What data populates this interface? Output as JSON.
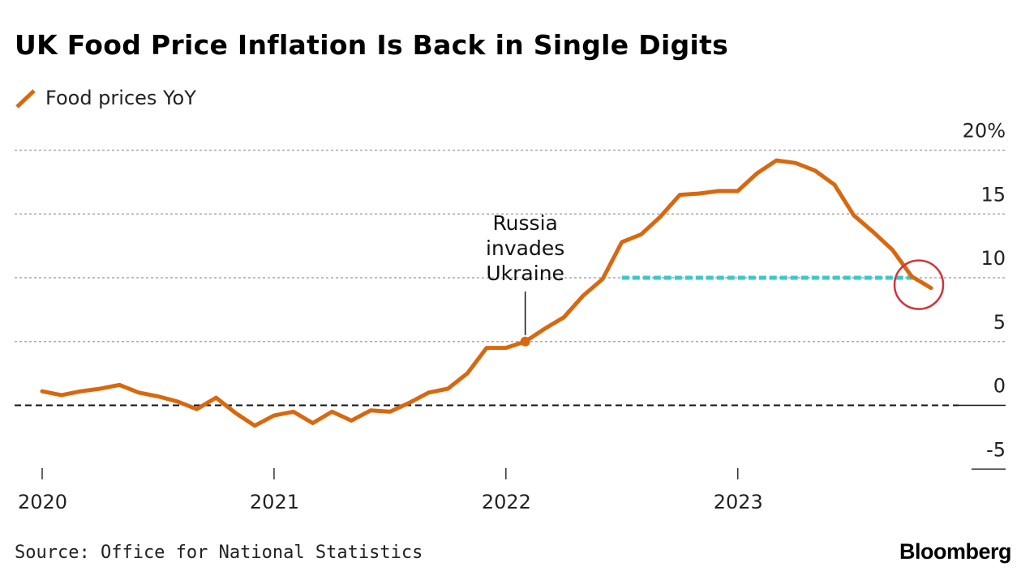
{
  "header": {
    "title": "UK Food Price Inflation Is Back in Single Digits"
  },
  "legend": {
    "label": "Food prices YoY",
    "color": "#d8680f"
  },
  "footer": {
    "source": "Source: Office for National Statistics",
    "brand": "Bloomberg"
  },
  "chart_data": {
    "type": "line",
    "title": "UK Food Price Inflation Is Back in Single Digits",
    "xlabel": "",
    "ylabel": "",
    "ylim": [
      -5,
      20
    ],
    "yticks": [
      -5,
      0,
      5,
      10,
      15,
      20
    ],
    "ytick_labels": [
      "-5",
      "0",
      "5",
      "10",
      "15",
      "20%"
    ],
    "xticks": [
      {
        "label": "2020",
        "x": "2020-01"
      },
      {
        "label": "2021",
        "x": "2021-01"
      },
      {
        "label": "2022",
        "x": "2022-01"
      },
      {
        "label": "2023",
        "x": "2023-01"
      }
    ],
    "grid": true,
    "zero_line": "dashed",
    "series": [
      {
        "name": "Food prices YoY",
        "color": "#d8680f",
        "points": [
          {
            "x": "2020-01",
            "y": 1.1
          },
          {
            "x": "2020-02",
            "y": 0.8
          },
          {
            "x": "2020-03",
            "y": 1.1
          },
          {
            "x": "2020-04",
            "y": 1.3
          },
          {
            "x": "2020-05",
            "y": 1.6
          },
          {
            "x": "2020-06",
            "y": 1.0
          },
          {
            "x": "2020-07",
            "y": 0.7
          },
          {
            "x": "2020-08",
            "y": 0.3
          },
          {
            "x": "2020-09",
            "y": -0.3
          },
          {
            "x": "2020-10",
            "y": 0.6
          },
          {
            "x": "2020-11",
            "y": -0.6
          },
          {
            "x": "2020-12",
            "y": -1.6
          },
          {
            "x": "2021-01",
            "y": -0.8
          },
          {
            "x": "2021-02",
            "y": -0.5
          },
          {
            "x": "2021-03",
            "y": -1.4
          },
          {
            "x": "2021-04",
            "y": -0.5
          },
          {
            "x": "2021-05",
            "y": -1.2
          },
          {
            "x": "2021-06",
            "y": -0.4
          },
          {
            "x": "2021-07",
            "y": -0.5
          },
          {
            "x": "2021-08",
            "y": 0.2
          },
          {
            "x": "2021-09",
            "y": 1.0
          },
          {
            "x": "2021-10",
            "y": 1.3
          },
          {
            "x": "2021-11",
            "y": 2.5
          },
          {
            "x": "2021-12",
            "y": 4.5
          },
          {
            "x": "2022-01",
            "y": 4.5
          },
          {
            "x": "2022-02",
            "y": 5.0
          },
          {
            "x": "2022-03",
            "y": 6.0
          },
          {
            "x": "2022-04",
            "y": 6.9
          },
          {
            "x": "2022-05",
            "y": 8.6
          },
          {
            "x": "2022-06",
            "y": 9.9
          },
          {
            "x": "2022-07",
            "y": 12.8
          },
          {
            "x": "2022-08",
            "y": 13.4
          },
          {
            "x": "2022-09",
            "y": 14.8
          },
          {
            "x": "2022-10",
            "y": 16.5
          },
          {
            "x": "2022-11",
            "y": 16.6
          },
          {
            "x": "2022-12",
            "y": 16.8
          },
          {
            "x": "2023-01",
            "y": 16.8
          },
          {
            "x": "2023-02",
            "y": 18.2
          },
          {
            "x": "2023-03",
            "y": 19.2
          },
          {
            "x": "2023-04",
            "y": 19.0
          },
          {
            "x": "2023-05",
            "y": 18.4
          },
          {
            "x": "2023-06",
            "y": 17.3
          },
          {
            "x": "2023-07",
            "y": 14.9
          },
          {
            "x": "2023-08",
            "y": 13.6
          },
          {
            "x": "2023-09",
            "y": 12.2
          },
          {
            "x": "2023-10",
            "y": 10.1
          },
          {
            "x": "2023-11",
            "y": 9.2
          }
        ]
      }
    ],
    "annotations": [
      {
        "text_lines": [
          "Russia",
          "invades",
          "Ukraine"
        ],
        "x": "2022-02",
        "y": 5.0,
        "marker": "dot"
      }
    ],
    "reference_line": {
      "from_x": "2022-07",
      "to_x": "2023-11",
      "y": 10.0,
      "style": "dotted",
      "color": "#3cc8c8"
    },
    "highlight": {
      "x": "2023-11",
      "y": 9.2,
      "shape": "circle",
      "color": "#d0343c"
    }
  }
}
